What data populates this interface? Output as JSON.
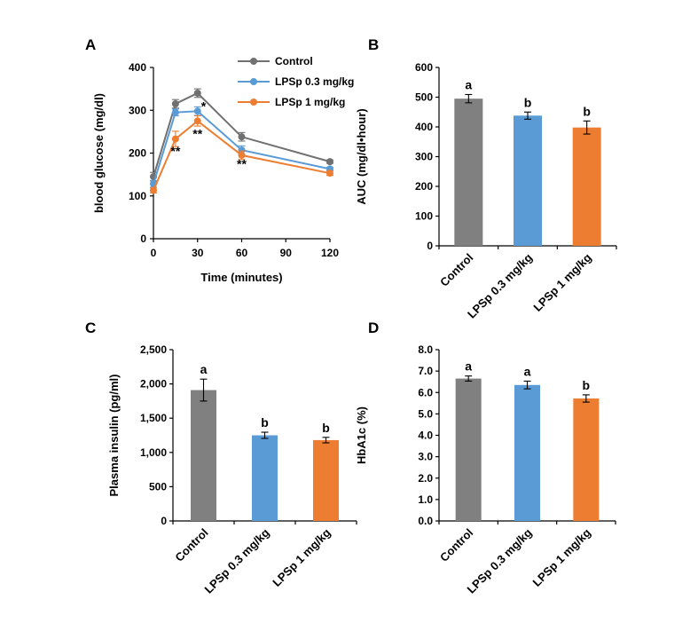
{
  "colors": {
    "control": "#808080",
    "low_dose": "#5B9BD5",
    "high_dose": "#ED7D31",
    "control_line": "#707070"
  },
  "chart_data": [
    {
      "panel": "A",
      "type": "line",
      "xlabel": "Time (minutes)",
      "ylabel": "blood glucose (mg/dl)",
      "x": [
        0,
        15,
        30,
        60,
        120
      ],
      "xticks": [
        0,
        30,
        60,
        90,
        120
      ],
      "yticks": [
        0,
        100,
        200,
        300,
        400
      ],
      "xlim": [
        0,
        120
      ],
      "ylim": [
        0,
        400
      ],
      "series": [
        {
          "name": "Control",
          "color": "#707070",
          "values": [
            145,
            315,
            340,
            238,
            180
          ],
          "errors": [
            10,
            10,
            10,
            10,
            4
          ]
        },
        {
          "name": "LPSp 0.3 mg/kg",
          "color": "#5B9BD5",
          "values": [
            128,
            295,
            298,
            207,
            163
          ],
          "errors": [
            8,
            8,
            10,
            10,
            4
          ]
        },
        {
          "name": "LPSp 1 mg/kg",
          "color": "#ED7D31",
          "values": [
            113,
            233,
            275,
            195,
            153
          ],
          "errors": [
            6,
            18,
            12,
            10,
            5
          ]
        }
      ],
      "annotations": [
        {
          "text": "**",
          "x": 15,
          "y": 195
        },
        {
          "text": "*",
          "x": 30,
          "y": 300
        },
        {
          "text": "**",
          "x": 30,
          "y": 235
        },
        {
          "text": "**",
          "x": 60,
          "y": 165
        }
      ]
    },
    {
      "panel": "B",
      "type": "bar",
      "ylabel": "AUC (mg/dl•hour)",
      "categories": [
        "Control",
        "LPSp 0.3 mg/kg",
        "LPSp 1 mg/kg"
      ],
      "values": [
        495,
        438,
        398
      ],
      "errors": [
        14,
        12,
        22
      ],
      "letters": [
        "a",
        "b",
        "b"
      ],
      "colors": [
        "#808080",
        "#5B9BD5",
        "#ED7D31"
      ],
      "ylim": [
        0,
        600
      ],
      "yticks": [
        0,
        100,
        200,
        300,
        400,
        500,
        600
      ],
      "ytick_labels": [
        "0",
        "100",
        "200",
        "300",
        "400",
        "500",
        "600"
      ]
    },
    {
      "panel": "C",
      "type": "bar",
      "ylabel": "Plasma insulin (pg/ml)",
      "categories": [
        "Control",
        "LPSp 0.3 mg/kg",
        "LPSp 1 mg/kg"
      ],
      "values": [
        1910,
        1250,
        1180
      ],
      "errors": [
        160,
        45,
        40
      ],
      "letters": [
        "a",
        "b",
        "b"
      ],
      "colors": [
        "#808080",
        "#5B9BD5",
        "#ED7D31"
      ],
      "ylim": [
        0,
        2500
      ],
      "yticks": [
        0,
        500,
        1000,
        1500,
        2000,
        2500
      ],
      "ytick_labels": [
        "0",
        "500",
        "1,000",
        "1,500",
        "2,000",
        "2,500"
      ]
    },
    {
      "panel": "D",
      "type": "bar",
      "ylabel": "HbA1c (%)",
      "categories": [
        "Control",
        "LPSp 0.3 mg/kg",
        "LPSp 1 mg/kg"
      ],
      "values": [
        6.65,
        6.35,
        5.72
      ],
      "errors": [
        0.12,
        0.18,
        0.17
      ],
      "letters": [
        "a",
        "a",
        "b"
      ],
      "colors": [
        "#808080",
        "#5B9BD5",
        "#ED7D31"
      ],
      "ylim": [
        0,
        8
      ],
      "yticks": [
        0,
        1,
        2,
        3,
        4,
        5,
        6,
        7,
        8
      ],
      "ytick_labels": [
        "0.0",
        "1.0",
        "2.0",
        "3.0",
        "4.0",
        "5.0",
        "6.0",
        "7.0",
        "8.0"
      ]
    }
  ]
}
